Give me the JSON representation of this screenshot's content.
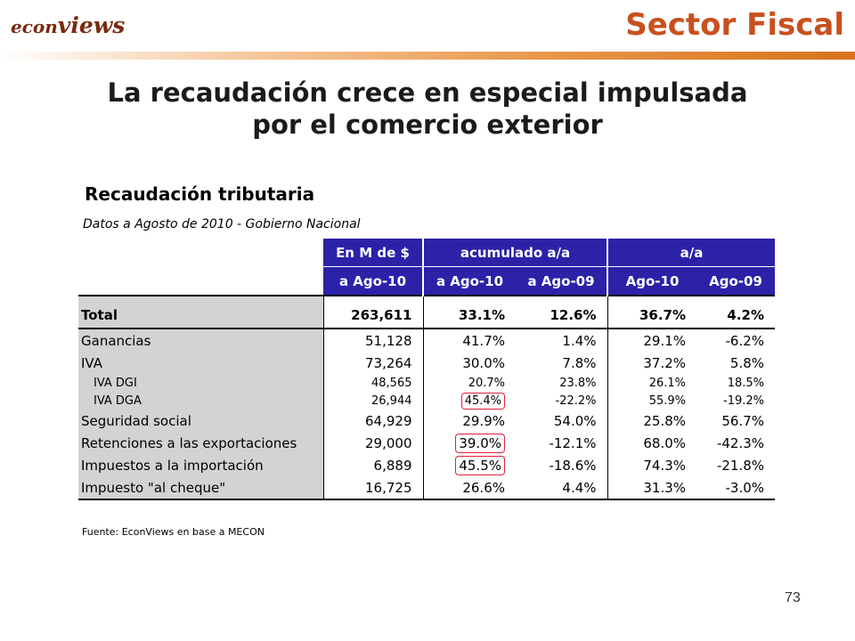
{
  "header": {
    "logo_part1": "econ",
    "logo_part2": "views",
    "section_title": "Sector Fiscal"
  },
  "headline": {
    "line1": "La recaudación crece en especial impulsada",
    "line2": "por el comercio exterior"
  },
  "table": {
    "title": "Recaudación tributaria",
    "subtitle": "Datos a Agosto de 2010 - Gobierno Nacional",
    "header_row1": [
      "En M de $",
      "acumulado a/a",
      "a/a"
    ],
    "header_row2": [
      "a Ago-10",
      "a Ago-10",
      "a Ago-09",
      "Ago-10",
      "Ago-09"
    ],
    "rows": [
      {
        "label": "Total",
        "values": [
          "263,611",
          "33.1%",
          "12.6%",
          "36.7%",
          "4.2%"
        ],
        "style": "total"
      },
      {
        "label": "Ganancias",
        "values": [
          "51,128",
          "41.7%",
          "1.4%",
          "29.1%",
          "-6.2%"
        ],
        "style": "main"
      },
      {
        "label": "IVA",
        "values": [
          "73,264",
          "30.0%",
          "7.8%",
          "37.2%",
          "5.8%"
        ],
        "style": "main"
      },
      {
        "label": "IVA DGI",
        "values": [
          "48,565",
          "20.7%",
          "23.8%",
          "26.1%",
          "18.5%"
        ],
        "style": "sub"
      },
      {
        "label": "IVA DGA",
        "values": [
          "26,944",
          "45.4%",
          "-22.2%",
          "55.9%",
          "-19.2%"
        ],
        "style": "sub",
        "highlight": true
      },
      {
        "label": "Seguridad social",
        "values": [
          "64,929",
          "29.9%",
          "54.0%",
          "25.8%",
          "56.7%"
        ],
        "style": "main"
      },
      {
        "label": "Retenciones a las exportaciones",
        "values": [
          "29,000",
          "39.0%",
          "-12.1%",
          "68.0%",
          "-42.3%"
        ],
        "style": "main",
        "highlight": true
      },
      {
        "label": "Impuestos a la importación",
        "values": [
          "6,889",
          "45.5%",
          "-18.6%",
          "74.3%",
          "-21.8%"
        ],
        "style": "main",
        "highlight": true
      },
      {
        "label": "Impuesto \"al cheque\"",
        "values": [
          "16,725",
          "26.6%",
          "4.4%",
          "31.3%",
          "-3.0%"
        ],
        "style": "main"
      }
    ],
    "source": "Fuente: EconViews en base a MECON"
  },
  "colors": {
    "header_blue": "#2b22a8",
    "highlight_red": "#e0203a",
    "section_orange": "#c8501e",
    "logo_brown": "#7a2a10"
  },
  "page_number": "73"
}
